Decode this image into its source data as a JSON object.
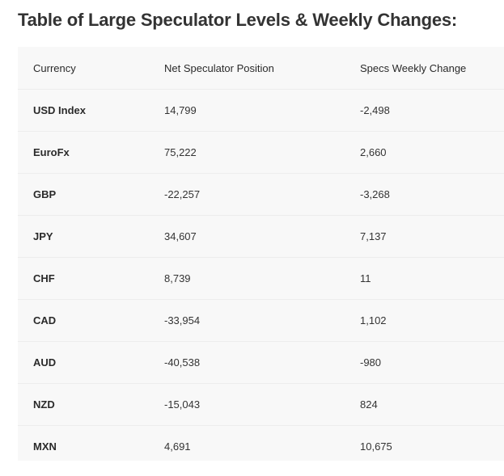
{
  "title": "Table of Large Speculator Levels & Weekly Changes:",
  "table": {
    "headers": [
      "Currency",
      "Net Speculator Position",
      "Specs Weekly Change"
    ],
    "rows": [
      [
        "USD Index",
        "14,799",
        "-2,498"
      ],
      [
        "EuroFx",
        "75,222",
        "2,660"
      ],
      [
        "GBP",
        "-22,257",
        "-3,268"
      ],
      [
        "JPY",
        "34,607",
        "7,137"
      ],
      [
        "CHF",
        "8,739",
        "11"
      ],
      [
        "CAD",
        "-33,954",
        "1,102"
      ],
      [
        "AUD",
        "-40,538",
        "-980"
      ],
      [
        "NZD",
        "-15,043",
        "824"
      ],
      [
        "MXN",
        "4,691",
        "10,675"
      ]
    ]
  }
}
